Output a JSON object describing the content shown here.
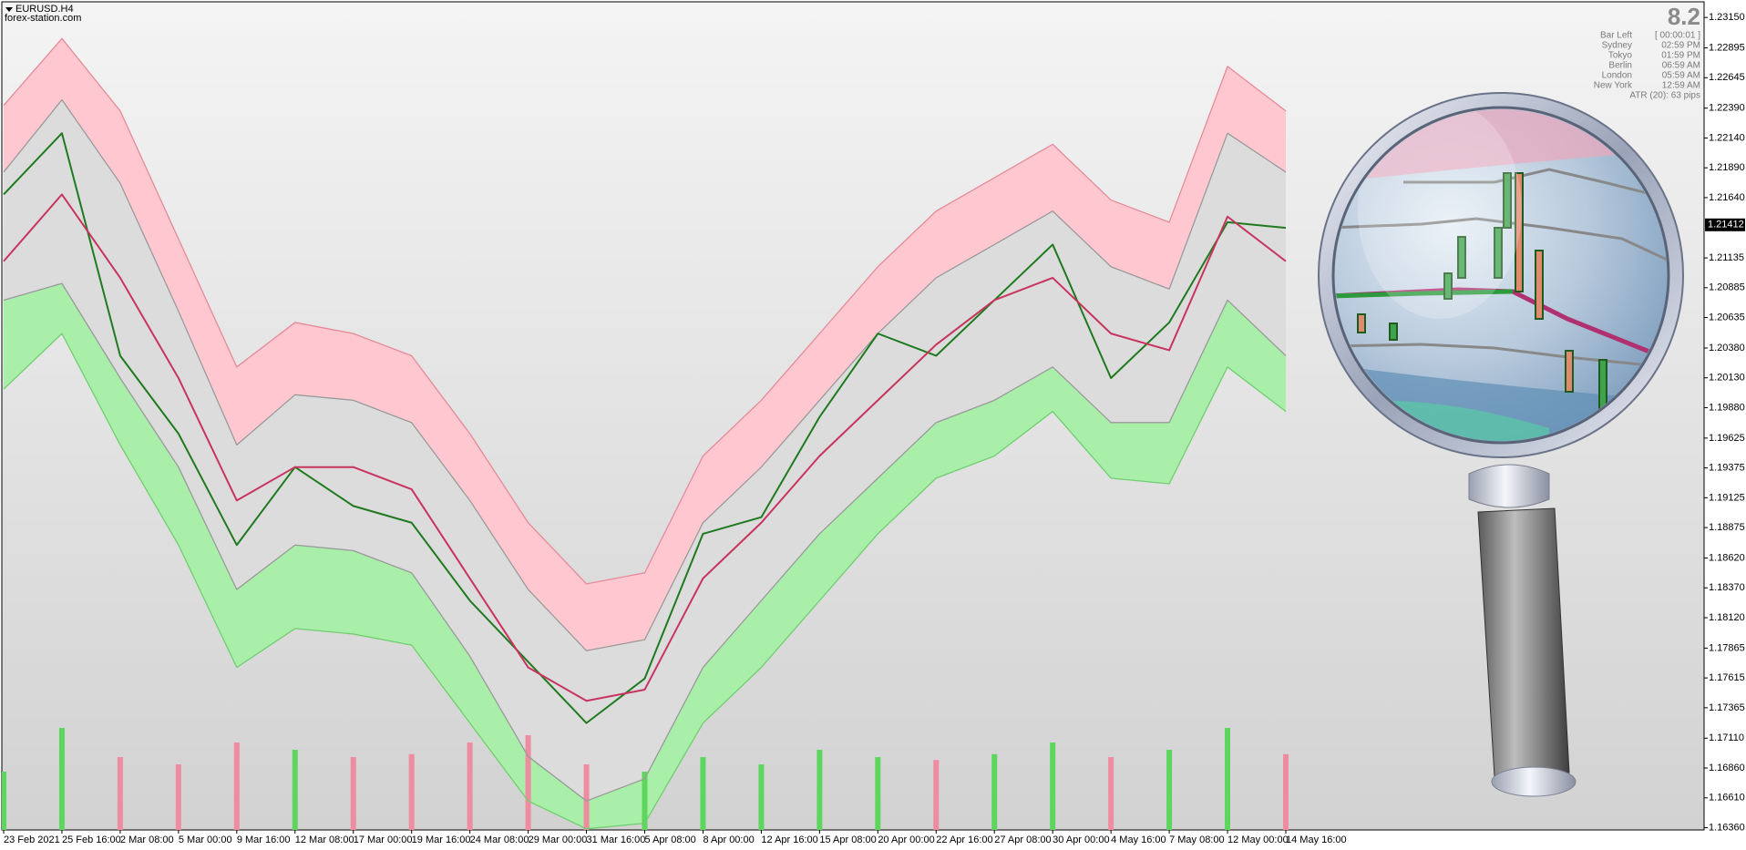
{
  "chart_data": {
    "type": "line",
    "title": "EURUSD.H4",
    "subtitle": "forex-station.com",
    "categories": [
      "23 Feb 2021",
      "25 Feb 16:00",
      "2 Mar 08:00",
      "5 Mar 00:00",
      "9 Mar 16:00",
      "12 Mar 08:00",
      "17 Mar 00:00",
      "19 Mar 16:00",
      "24 Mar 08:00",
      "29 Mar 00:00",
      "31 Mar 16:00",
      "5 Apr 08:00",
      "8 Apr 00:00",
      "12 Apr 16:00",
      "15 Apr 08:00",
      "20 Apr 00:00",
      "22 Apr 16:00",
      "27 Apr 08:00",
      "30 Apr 00:00",
      "4 May 16:00",
      "7 May 08:00",
      "12 May 00:00",
      "14 May 16:00"
    ],
    "series": [
      {
        "color": "#e58a98",
        "fill": "#ffc8d1",
        "values": [
          1.22413,
          1.22973,
          1.22367,
          1.21294,
          1.20221,
          1.20594,
          1.20501,
          1.20315,
          1.19662,
          1.18916,
          1.18403,
          1.18496,
          1.19475,
          1.19942,
          1.20501,
          1.21061,
          1.21527,
          1.21807,
          1.22087,
          1.2162,
          1.21434,
          1.2274,
          1.22367
        ]
      },
      {
        "color": "#9a9a9a",
        "fill": "#dcdcdc",
        "values": [
          1.21854,
          1.2246,
          1.2176,
          1.20688,
          1.19568,
          1.19988,
          1.19942,
          1.19755,
          1.19102,
          1.18356,
          1.17843,
          1.17936,
          1.18916,
          1.19382,
          1.19942,
          1.20501,
          1.20968,
          1.21247,
          1.21527,
          1.21061,
          1.20874,
          1.2218,
          1.21854
        ]
      },
      {
        "color": "#9a9a9a",
        "fill": "#a9eea9",
        "values": [
          1.20781,
          1.20921,
          1.20128,
          1.19382,
          1.18356,
          1.18729,
          1.18682,
          1.18496,
          1.17797,
          1.16957,
          1.16584,
          1.1677,
          1.17703,
          1.18263,
          1.18823,
          1.19289,
          1.19755,
          1.19942,
          1.20221,
          1.19755,
          1.19755,
          1.20781,
          1.20315
        ]
      },
      {
        "color": "#6fcf6f",
        "values": [
          1.20035,
          1.20501,
          1.19568,
          1.18729,
          1.17703,
          1.18029,
          1.17983,
          1.1789,
          1.17237,
          1.16584,
          1.1635,
          1.16397,
          1.17237,
          1.17703,
          1.18263,
          1.18823,
          1.19289,
          1.19475,
          1.19848,
          1.19289,
          1.19242,
          1.20221,
          1.19848
        ]
      },
      {
        "color": "#1f7a1f",
        "values": [
          1.21667,
          1.2218,
          1.20315,
          1.19662,
          1.18729,
          1.19382,
          1.19056,
          1.18916,
          1.18263,
          1.1775,
          1.17237,
          1.1761,
          1.18823,
          1.18962,
          1.19802,
          1.20501,
          1.20315,
          1.20781,
          1.21247,
          1.20128,
          1.20594,
          1.21434,
          1.21387
        ]
      },
      {
        "color": "#c8345e",
        "values": [
          1.21107,
          1.21667,
          1.20968,
          1.20128,
          1.19102,
          1.19382,
          1.19382,
          1.19196,
          1.18449,
          1.17703,
          1.17423,
          1.17517,
          1.18449,
          1.18916,
          1.19475,
          1.19942,
          1.20408,
          1.20781,
          1.20968,
          1.20501,
          1.20361,
          1.21481,
          1.21107
        ]
      }
    ],
    "volume": {
      "up_color": "#5cd65c",
      "down_color": "#f08ca0",
      "ylim": [
        0,
        1000
      ],
      "values": [
        400,
        700,
        500,
        450,
        600,
        550,
        500,
        520,
        600,
        650,
        450,
        400,
        500,
        450,
        550,
        500,
        480,
        520,
        600,
        500,
        550,
        700,
        520
      ]
    },
    "ylim": [
      1.16341,
      1.23281
    ],
    "yticks": [
      {
        "value": 1.2315,
        "label": "1.23150"
      },
      1.22895,
      1.22645,
      {
        "value": 1.2239,
        "label": "1.22390"
      },
      {
        "value": 1.2214,
        "label": "1.22140"
      },
      {
        "value": 1.2189,
        "label": "1.21890"
      },
      {
        "value": 1.2164,
        "label": "1.21640"
      },
      1.21135,
      1.20885,
      1.20635,
      {
        "value": 1.2038,
        "label": "1.20380"
      },
      {
        "value": 1.2013,
        "label": "1.20130"
      },
      {
        "value": 1.1988,
        "label": "1.19880"
      },
      1.19625,
      1.19375,
      1.19125,
      1.18875,
      {
        "value": 1.1862,
        "label": "1.18620"
      },
      {
        "value": 1.1837,
        "label": "1.18370"
      },
      {
        "value": 1.1812,
        "label": "1.18120"
      },
      1.17865,
      1.17615,
      1.17365,
      {
        "value": 1.1711,
        "label": "1.17110"
      },
      {
        "value": 1.1686,
        "label": "1.16860"
      },
      {
        "value": 1.1661,
        "label": "1.16610"
      },
      {
        "value": 1.1636,
        "label": "1.16360"
      }
    ],
    "current_price": 1.21412,
    "info_panel": {
      "spread": "8.2",
      "rows": [
        [
          "Bar Left",
          "[ 00:00:01 ]"
        ],
        [
          "Sydney",
          "02:59 PM"
        ],
        [
          "Tokyo",
          "01:59 PM"
        ],
        [
          "Berlin",
          "06:59 AM"
        ],
        [
          "London",
          "05:59 AM"
        ],
        [
          "New York",
          "12:59 AM"
        ]
      ],
      "atr": "ATR (20): 63 pips"
    }
  }
}
